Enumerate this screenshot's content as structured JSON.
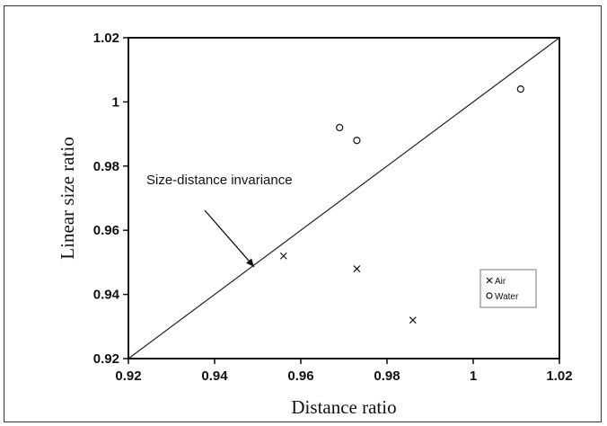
{
  "chart_data": {
    "type": "scatter",
    "title": "",
    "xlabel": "Distance ratio",
    "ylabel": "Linear size ratio",
    "xlim": [
      0.92,
      1.02
    ],
    "ylim": [
      0.92,
      1.02
    ],
    "xticks": [
      "0.92",
      "0.94",
      "0.96",
      "0.98",
      "1",
      "1.02"
    ],
    "yticks": [
      "0.92",
      "0.94",
      "0.96",
      "0.98",
      "1",
      "1.02"
    ],
    "grid": false,
    "legend_position": "bottom-right",
    "series": [
      {
        "name": "Air",
        "marker": "x",
        "points": [
          {
            "x": 0.956,
            "y": 0.952
          },
          {
            "x": 0.973,
            "y": 0.948
          },
          {
            "x": 0.986,
            "y": 0.932
          }
        ]
      },
      {
        "name": "Water",
        "marker": "circle",
        "points": [
          {
            "x": 0.969,
            "y": 0.992
          },
          {
            "x": 0.973,
            "y": 0.988
          },
          {
            "x": 1.011,
            "y": 1.004
          }
        ]
      }
    ],
    "reference_line": {
      "from": [
        0.92,
        0.92
      ],
      "to": [
        1.02,
        1.02
      ]
    },
    "annotation": {
      "text": "Size-distance invariance",
      "points_to": [
        0.95,
        0.95
      ]
    },
    "colors": {
      "ink": "#111111",
      "background": "#ffffff"
    }
  }
}
